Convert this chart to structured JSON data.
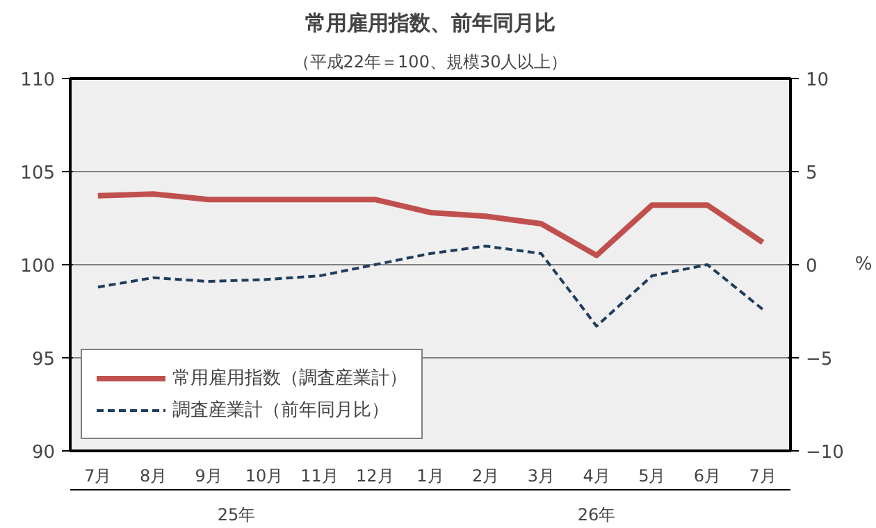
{
  "chart_data": {
    "type": "line",
    "title": "常用雇用指数、前年同月比",
    "subtitle": "（平成22年＝100、規模30人以上）",
    "categories": [
      "7月",
      "8月",
      "9月",
      "10月",
      "11月",
      "12月",
      "1月",
      "2月",
      "3月",
      "4月",
      "5月",
      "6月",
      "7月"
    ],
    "annotations": [
      "25年",
      "26年"
    ],
    "series": [
      {
        "name": "常用雇用指数（調査産業計）",
        "color": "#c0504d",
        "line_style": "solid",
        "values": [
          103.7,
          103.8,
          103.5,
          103.5,
          103.5,
          103.5,
          102.8,
          102.6,
          102.2,
          100.5,
          103.2,
          103.2,
          101.2
        ]
      },
      {
        "name": "調査産業計（前年同月比）",
        "color": "#1f3d5c",
        "line_style": "dashed",
        "axis": "y2",
        "values": [
          -1.2,
          -0.7,
          -0.9,
          -0.8,
          -0.6,
          0.0,
          0.6,
          1.0,
          0.6,
          -3.3,
          -0.6,
          0.0,
          -2.4
        ]
      }
    ],
    "ylim": [
      90,
      110
    ],
    "yticks": [
      90,
      95,
      100,
      105,
      110
    ],
    "y2label": "%",
    "y2lim": [
      -10,
      10
    ],
    "y2ticks": [
      -10,
      -5,
      0,
      5,
      10
    ],
    "grid": "y",
    "legend": "bottom left",
    "marker": "none"
  }
}
